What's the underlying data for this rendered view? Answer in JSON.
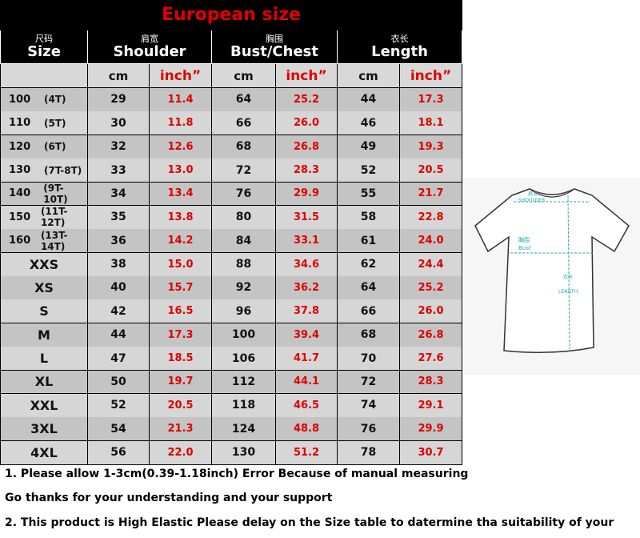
{
  "title": "European size",
  "headers": [
    {
      "zh": "尺码",
      "en": "Size"
    },
    {
      "zh": "肩宽",
      "en": "Shoulder"
    },
    {
      "zh": "胸围",
      "en": "Bust/Chest"
    },
    {
      "zh": "衣长",
      "en": "Length"
    }
  ],
  "units": [
    "cm",
    "inch”"
  ],
  "rows": [
    {
      "size": "100",
      "age": "(4T)",
      "cells": [
        "29",
        "11.4",
        "64",
        "25.2",
        "44",
        "17.3"
      ]
    },
    {
      "size": "110",
      "age": "(5T)",
      "cells": [
        "30",
        "11.8",
        "66",
        "26.0",
        "46",
        "18.1"
      ]
    },
    {
      "size": "120",
      "age": "(6T)",
      "cells": [
        "32",
        "12.6",
        "68",
        "26.8",
        "49",
        "19.3"
      ]
    },
    {
      "size": "130",
      "age": "(7T-8T)",
      "cells": [
        "33",
        "13.0",
        "72",
        "28.3",
        "52",
        "20.5"
      ]
    },
    {
      "size": "140",
      "age": "(9T-10T)",
      "cells": [
        "34",
        "13.4",
        "76",
        "29.9",
        "55",
        "21.7"
      ]
    },
    {
      "size": "150",
      "age": "(11T-12T)",
      "cells": [
        "35",
        "13.8",
        "80",
        "31.5",
        "58",
        "22.8"
      ]
    },
    {
      "size": "160",
      "age": "(13T-14T)",
      "cells": [
        "36",
        "14.2",
        "84",
        "33.1",
        "61",
        "24.0"
      ]
    },
    {
      "size": "XXS",
      "cells": [
        "38",
        "15.0",
        "88",
        "34.6",
        "62",
        "24.4"
      ]
    },
    {
      "size": "XS",
      "cells": [
        "40",
        "15.7",
        "92",
        "36.2",
        "64",
        "25.2"
      ]
    },
    {
      "size": "S",
      "cells": [
        "42",
        "16.5",
        "96",
        "37.8",
        "66",
        "26.0"
      ]
    },
    {
      "size": "M",
      "cells": [
        "44",
        "17.3",
        "100",
        "39.4",
        "68",
        "26.8"
      ]
    },
    {
      "size": "L",
      "cells": [
        "47",
        "18.5",
        "106",
        "41.7",
        "70",
        "27.6"
      ]
    },
    {
      "size": "XL",
      "cells": [
        "50",
        "19.7",
        "112",
        "44.1",
        "72",
        "28.3"
      ]
    },
    {
      "size": "XXL",
      "cells": [
        "52",
        "20.5",
        "118",
        "46.5",
        "74",
        "29.1"
      ]
    },
    {
      "size": "3XL",
      "cells": [
        "54",
        "21.3",
        "124",
        "48.8",
        "76",
        "29.9"
      ]
    },
    {
      "size": "4XL",
      "cells": [
        "56",
        "22.0",
        "130",
        "51.2",
        "78",
        "30.7"
      ]
    }
  ],
  "diagram": {
    "shoulder_zh": "肩宽",
    "shoulder_en": "SHOULDER",
    "bust_zh": "胸围",
    "bust_en": "Bust",
    "length_zh": "衣长",
    "length_en": "LENGTH"
  },
  "notes": [
    "1. Please allow 1-3cm(0.39-1.18inch) Error Because of manual measuring",
    "Go thanks for your understanding and your support",
    "2. This product is High Elastic  Please delay on the Size table to datermine tha suitability of your"
  ]
}
